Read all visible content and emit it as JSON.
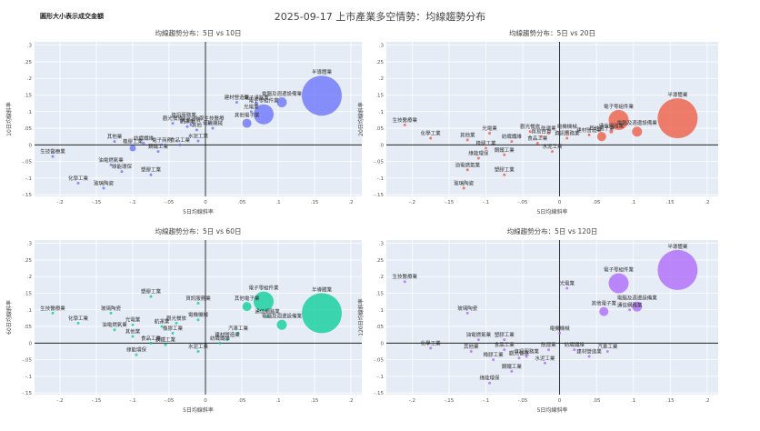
{
  "page": {
    "title": "2025-09-17 上市產業多空情勢：均線趨勢分布",
    "size_note": "圓形大小表示成交金額"
  },
  "chart_data": [
    {
      "type": "scatter",
      "title": "均線趨勢分布：5日 vs 10日",
      "xlabel": "5日均線斜率",
      "ylabel": "10日均線斜率",
      "color": "#636efa",
      "xlim": [
        -0.235,
        0.215
      ],
      "ylim": [
        -0.155,
        0.31
      ],
      "xticks": [
        -0.2,
        -0.15,
        -0.1,
        -0.05,
        0,
        0.05,
        0.1,
        0.15,
        0.2
      ],
      "yticks": [
        -0.15,
        -0.1,
        -0.05,
        0,
        0.05,
        0.1,
        0.15,
        0.2,
        0.25,
        0.3
      ],
      "points": [
        {
          "label": "半導體業",
          "x": 0.16,
          "y": 0.148,
          "r": 22
        },
        {
          "label": "電腦及週邊設備業",
          "x": 0.105,
          "y": 0.128,
          "r": 5.5
        },
        {
          "label": "電子零組件業",
          "x": 0.08,
          "y": 0.092,
          "r": 11
        },
        {
          "label": "建材營造業",
          "x": 0.043,
          "y": 0.128,
          "r": 1.5
        },
        {
          "label": "電子通路業",
          "x": 0.07,
          "y": 0.125,
          "r": 2
        },
        {
          "label": "其他電子業",
          "x": 0.057,
          "y": 0.065,
          "r": 5
        },
        {
          "label": "光電業",
          "x": 0.063,
          "y": 0.1,
          "r": 1.5
        },
        {
          "label": "資訊服務業",
          "x": -0.03,
          "y": 0.075,
          "r": 1.5
        },
        {
          "label": "觀光餐旅",
          "x": -0.045,
          "y": 0.065,
          "r": 1.5
        },
        {
          "label": "化學生技醫療",
          "x": 0.005,
          "y": 0.065,
          "r": 1.5
        },
        {
          "label": "貿易百貨",
          "x": -0.02,
          "y": 0.06,
          "r": 1.5
        },
        {
          "label": "航運業",
          "x": -0.025,
          "y": 0.055,
          "r": 1.5
        },
        {
          "label": "電機機械",
          "x": 0.01,
          "y": 0.05,
          "r": 1.5
        },
        {
          "label": "其他",
          "x": -0.012,
          "y": 0.045,
          "r": 1.5
        },
        {
          "label": "水泥工業",
          "x": -0.01,
          "y": 0.012,
          "r": 1.5
        },
        {
          "label": "其他業",
          "x": -0.125,
          "y": 0.01,
          "r": 1.5
        },
        {
          "label": "紡織纖維",
          "x": -0.085,
          "y": 0.005,
          "r": 1.5
        },
        {
          "label": "食品工業",
          "x": -0.035,
          "y": 0.0,
          "r": 1.5
        },
        {
          "label": "電子商務",
          "x": -0.06,
          "y": 0.0,
          "r": 1.5
        },
        {
          "label": "鋼鐵工業",
          "x": -0.065,
          "y": -0.02,
          "r": 1.5
        },
        {
          "label": "生技醫療業",
          "x": -0.21,
          "y": -0.035,
          "r": 1.5
        },
        {
          "label": "油電燃氣業",
          "x": -0.13,
          "y": -0.06,
          "r": 1.5
        },
        {
          "label": "橡膠工業",
          "x": -0.1,
          "y": -0.01,
          "r": 3.5
        },
        {
          "label": "綠能環保",
          "x": -0.115,
          "y": -0.08,
          "r": 1.5
        },
        {
          "label": "塑膠工業",
          "x": -0.075,
          "y": -0.09,
          "r": 1.5
        },
        {
          "label": "化學工業",
          "x": -0.175,
          "y": -0.115,
          "r": 1.5
        },
        {
          "label": "玻璃陶瓷",
          "x": -0.14,
          "y": -0.13,
          "r": 1.5
        }
      ]
    },
    {
      "type": "scatter",
      "title": "均線趨勢分布：5日 vs 20日",
      "xlabel": "5日均線斜率",
      "ylabel": "20日均線斜率",
      "color": "#ef553b",
      "xlim": [
        -0.235,
        0.215
      ],
      "ylim": [
        -0.155,
        0.31
      ],
      "xticks": [
        -0.2,
        -0.15,
        -0.1,
        -0.05,
        0,
        0.05,
        0.1,
        0.15,
        0.2
      ],
      "yticks": [
        -0.15,
        -0.1,
        -0.05,
        0,
        0.05,
        0.1,
        0.15,
        0.2,
        0.25,
        0.3
      ],
      "points": [
        {
          "label": "半導體業",
          "x": 0.16,
          "y": 0.08,
          "r": 22
        },
        {
          "label": "電子零組件業",
          "x": 0.08,
          "y": 0.075,
          "r": 11
        },
        {
          "label": "電腦及週邊設備業",
          "x": 0.105,
          "y": 0.04,
          "r": 5.5
        },
        {
          "label": "其他電子業",
          "x": 0.057,
          "y": 0.025,
          "r": 5
        },
        {
          "label": "通信網路業",
          "x": 0.07,
          "y": 0.04,
          "r": 2
        },
        {
          "label": "生技醫療業",
          "x": -0.21,
          "y": 0.06,
          "r": 1.5
        },
        {
          "label": "化學工業",
          "x": -0.175,
          "y": 0.02,
          "r": 1.5
        },
        {
          "label": "其他業",
          "x": -0.125,
          "y": 0.015,
          "r": 1.5
        },
        {
          "label": "光電業",
          "x": -0.095,
          "y": 0.035,
          "r": 1.5
        },
        {
          "label": "觀光餐旅",
          "x": -0.04,
          "y": 0.04,
          "r": 1.5
        },
        {
          "label": "航運業",
          "x": -0.015,
          "y": 0.035,
          "r": 1.5
        },
        {
          "label": "電機機械",
          "x": 0.01,
          "y": 0.04,
          "r": 1.5
        },
        {
          "label": "貿易百貨",
          "x": -0.025,
          "y": 0.025,
          "r": 1.5
        },
        {
          "label": "資訊服務業",
          "x": 0.01,
          "y": 0.02,
          "r": 1.5
        },
        {
          "label": "建材營造業",
          "x": 0.04,
          "y": 0.03,
          "r": 1.5
        },
        {
          "label": "紡織纖維",
          "x": -0.065,
          "y": 0.01,
          "r": 1.5
        },
        {
          "label": "食品工業",
          "x": -0.03,
          "y": 0.005,
          "r": 1.5
        },
        {
          "label": "橡膠工業",
          "x": -0.1,
          "y": -0.01,
          "r": 1.5
        },
        {
          "label": "鋼鐵工業",
          "x": -0.075,
          "y": -0.03,
          "r": 1.5
        },
        {
          "label": "綠能環保",
          "x": -0.11,
          "y": -0.04,
          "r": 1.5
        },
        {
          "label": "水泥工業",
          "x": -0.01,
          "y": -0.02,
          "r": 1.5
        },
        {
          "label": "油電燃氣業",
          "x": -0.125,
          "y": -0.075,
          "r": 1.5
        },
        {
          "label": "塑膠工業",
          "x": -0.075,
          "y": -0.09,
          "r": 1.5
        },
        {
          "label": "玻璃陶瓷",
          "x": -0.13,
          "y": -0.13,
          "r": 1.5
        }
      ]
    },
    {
      "type": "scatter",
      "title": "均線趨勢分布：5日 vs 60日",
      "xlabel": "5日均線斜率",
      "ylabel": "60日均線斜率",
      "color": "#00cc96",
      "xlim": [
        -0.235,
        0.215
      ],
      "ylim": [
        -0.155,
        0.31
      ],
      "xticks": [
        -0.2,
        -0.15,
        -0.1,
        -0.05,
        0,
        0.05,
        0.1,
        0.15,
        0.2
      ],
      "yticks": [
        -0.15,
        -0.1,
        -0.05,
        0,
        0.05,
        0.1,
        0.15,
        0.2,
        0.25,
        0.3
      ],
      "points": [
        {
          "label": "半導體業",
          "x": 0.16,
          "y": 0.09,
          "r": 22
        },
        {
          "label": "電子零組件業",
          "x": 0.08,
          "y": 0.125,
          "r": 11
        },
        {
          "label": "其他電子業",
          "x": 0.057,
          "y": 0.11,
          "r": 5
        },
        {
          "label": "電腦及週邊設備業",
          "x": 0.105,
          "y": 0.055,
          "r": 5.5
        },
        {
          "label": "通信網路業",
          "x": 0.085,
          "y": 0.08,
          "r": 1.5
        },
        {
          "label": "塑膠工業",
          "x": -0.075,
          "y": 0.14,
          "r": 1.5
        },
        {
          "label": "資訊服務業",
          "x": -0.01,
          "y": 0.12,
          "r": 1.5
        },
        {
          "label": "生技醫療業",
          "x": -0.21,
          "y": 0.09,
          "r": 1.5
        },
        {
          "label": "化學工業",
          "x": -0.175,
          "y": 0.06,
          "r": 1.5
        },
        {
          "label": "玻璃陶瓷",
          "x": -0.13,
          "y": 0.09,
          "r": 1.5
        },
        {
          "label": "電機機械",
          "x": -0.01,
          "y": 0.07,
          "r": 1.5
        },
        {
          "label": "油電燃氣業",
          "x": -0.125,
          "y": 0.04,
          "r": 1.5
        },
        {
          "label": "光電業",
          "x": -0.1,
          "y": 0.055,
          "r": 1.5
        },
        {
          "label": "其他業",
          "x": -0.1,
          "y": 0.02,
          "r": 1.5
        },
        {
          "label": "航運業",
          "x": -0.06,
          "y": 0.05,
          "r": 1.5
        },
        {
          "label": "觀光餐旅",
          "x": -0.04,
          "y": 0.06,
          "r": 1.5
        },
        {
          "label": "橡膠工業",
          "x": -0.045,
          "y": 0.03,
          "r": 1.5
        },
        {
          "label": "汽車工業",
          "x": 0.045,
          "y": 0.03,
          "r": 1.5
        },
        {
          "label": "建材營造業",
          "x": 0.03,
          "y": 0.01,
          "r": 1.5
        },
        {
          "label": "紡織纖維",
          "x": 0.02,
          "y": 0.0,
          "r": 1.5
        },
        {
          "label": "食品工業",
          "x": -0.075,
          "y": 0.0,
          "r": 1.5
        },
        {
          "label": "鋼鐵工業",
          "x": -0.055,
          "y": -0.005,
          "r": 1.5
        },
        {
          "label": "水泥工業",
          "x": -0.01,
          "y": -0.025,
          "r": 1.5
        },
        {
          "label": "綠能環保",
          "x": -0.095,
          "y": -0.035,
          "r": 1.5
        }
      ]
    },
    {
      "type": "scatter",
      "title": "均線趨勢分布：5日 vs 120日",
      "xlabel": "5日均線斜率",
      "ylabel": "120日均線斜率",
      "color": "#ab63fa",
      "xlim": [
        -0.235,
        0.215
      ],
      "ylim": [
        -0.155,
        0.31
      ],
      "xticks": [
        -0.2,
        -0.15,
        -0.1,
        -0.05,
        0,
        0.05,
        0.1,
        0.15,
        0.2
      ],
      "yticks": [
        -0.15,
        -0.1,
        -0.05,
        0,
        0.05,
        0.1,
        0.15,
        0.2,
        0.25,
        0.3
      ],
      "points": [
        {
          "label": "半導體業",
          "x": 0.16,
          "y": 0.22,
          "r": 22
        },
        {
          "label": "電子零組件業",
          "x": 0.08,
          "y": 0.18,
          "r": 11
        },
        {
          "label": "電腦及週邊設備業",
          "x": 0.105,
          "y": 0.11,
          "r": 5.5
        },
        {
          "label": "其他電子業",
          "x": 0.06,
          "y": 0.095,
          "r": 5
        },
        {
          "label": "通信網路業",
          "x": 0.095,
          "y": 0.1,
          "r": 1.5
        },
        {
          "label": "光電業",
          "x": 0.01,
          "y": 0.165,
          "r": 1.5
        },
        {
          "label": "生技醫療業",
          "x": -0.21,
          "y": 0.185,
          "r": 1.5
        },
        {
          "label": "玻璃陶瓷",
          "x": -0.125,
          "y": 0.09,
          "r": 1.5
        },
        {
          "label": "電機機械",
          "x": 0.0,
          "y": 0.03,
          "r": 1.5
        },
        {
          "label": "油電燃氣業",
          "x": -0.11,
          "y": 0.01,
          "r": 1.5
        },
        {
          "label": "塑膠工業",
          "x": -0.075,
          "y": 0.01,
          "r": 1.5
        },
        {
          "label": "化學工業",
          "x": -0.175,
          "y": -0.015,
          "r": 1.5
        },
        {
          "label": "其他業",
          "x": -0.12,
          "y": -0.025,
          "r": 1.5
        },
        {
          "label": "汽車工業",
          "x": 0.065,
          "y": -0.025,
          "r": 1.5
        },
        {
          "label": "紡織纖維",
          "x": 0.02,
          "y": -0.02,
          "r": 1.5
        },
        {
          "label": "建材營造業",
          "x": 0.04,
          "y": -0.04,
          "r": 1.5
        },
        {
          "label": "食品工業",
          "x": -0.075,
          "y": -0.02,
          "r": 1.5
        },
        {
          "label": "資訊服務業",
          "x": -0.045,
          "y": -0.04,
          "r": 1.5
        },
        {
          "label": "航運業",
          "x": -0.015,
          "y": -0.02,
          "r": 1.5
        },
        {
          "label": "鋼鐵工業",
          "x": -0.065,
          "y": -0.085,
          "r": 1.5
        },
        {
          "label": "水泥工業",
          "x": -0.02,
          "y": -0.06,
          "r": 1.5
        },
        {
          "label": "觀光餐旅",
          "x": -0.055,
          "y": -0.045,
          "r": 1.5
        },
        {
          "label": "橡膠工業",
          "x": -0.09,
          "y": -0.05,
          "r": 1.5
        },
        {
          "label": "綠能環保",
          "x": -0.095,
          "y": -0.12,
          "r": 1.5
        }
      ]
    }
  ]
}
